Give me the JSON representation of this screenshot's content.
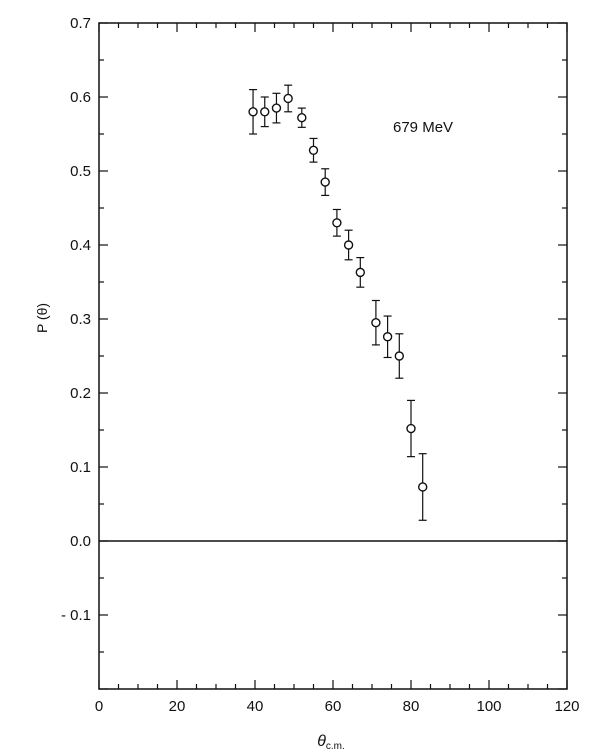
{
  "chart_data": {
    "type": "scatter",
    "title": "",
    "xlabel": "θc.m.",
    "xlabel_main": "θ",
    "xlabel_sub": "c.m.",
    "ylabel": "P (θ)",
    "xlim": [
      0,
      120
    ],
    "ylim": [
      -0.2,
      0.7
    ],
    "x_ticks": [
      0,
      20,
      40,
      60,
      80,
      100,
      120
    ],
    "x_tick_labels": [
      "0",
      "20",
      "40",
      "60",
      "80",
      "100",
      "120"
    ],
    "y_ticks": [
      0.7,
      0.6,
      0.5,
      0.4,
      0.3,
      0.2,
      0.1,
      0.0,
      -0.1
    ],
    "y_tick_labels": [
      "0.7",
      "0.6",
      "0.5",
      "0.4",
      "0.3",
      "0.2",
      "0.1",
      "0.0",
      "- 0.1"
    ],
    "grid": false,
    "legend": "none",
    "reference_line_y": 0,
    "annotation": "679  MeV",
    "marker": "open-circle",
    "color": "#111111",
    "series": [
      {
        "x": [
          39.5,
          42.5,
          45.5,
          48.5,
          52,
          55,
          58,
          61,
          64,
          67,
          71,
          74,
          77,
          80,
          83
        ],
        "y": [
          0.58,
          0.58,
          0.585,
          0.598,
          0.572,
          0.528,
          0.485,
          0.43,
          0.4,
          0.363,
          0.295,
          0.276,
          0.25,
          0.152,
          0.073
        ],
        "err": [
          0.03,
          0.02,
          0.02,
          0.018,
          0.013,
          0.016,
          0.018,
          0.018,
          0.02,
          0.02,
          0.03,
          0.028,
          0.03,
          0.038,
          0.045
        ]
      }
    ]
  }
}
